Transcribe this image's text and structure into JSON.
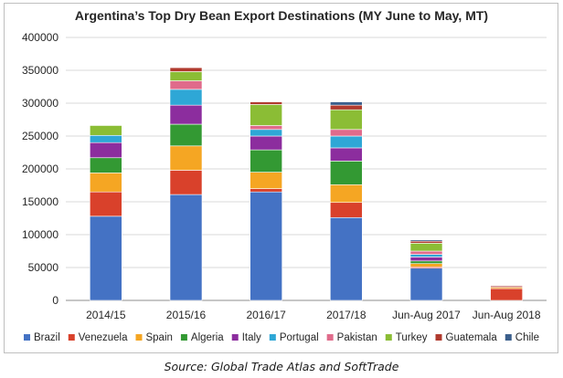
{
  "chart_data": {
    "type": "bar",
    "stacked": true,
    "title": "Argentina’s Top Dry Bean Export Destinations (MY June to May, MT)",
    "xlabel": "",
    "ylabel": "",
    "ylim": [
      0,
      400000
    ],
    "yticks": [
      0,
      50000,
      100000,
      150000,
      200000,
      250000,
      300000,
      350000,
      400000
    ],
    "ytick_labels": [
      "0",
      "50000",
      "100000",
      "150000",
      "200000",
      "250000",
      "300000",
      "350000",
      "400000"
    ],
    "grid": true,
    "legend_position": "bottom",
    "categories": [
      "2014/15",
      "2015/16",
      "2016/17",
      "2017/18",
      "Jun-Aug 2017",
      "Jun-Aug 2018"
    ],
    "series": [
      {
        "name": "Brazil",
        "color": "#4472c4",
        "values": [
          128000,
          161000,
          165000,
          126000,
          49000,
          0
        ]
      },
      {
        "name": "Venezuela",
        "color": "#d9412b",
        "values": [
          37000,
          37000,
          5000,
          23000,
          2000,
          18000
        ]
      },
      {
        "name": "Spain",
        "color": "#f5a623",
        "values": [
          29000,
          37000,
          25000,
          27000,
          5000,
          2000
        ]
      },
      {
        "name": "Algeria",
        "color": "#339933",
        "values": [
          23000,
          33000,
          34000,
          36000,
          4000,
          0
        ]
      },
      {
        "name": "Italy",
        "color": "#8c2d9e",
        "values": [
          23000,
          29000,
          21000,
          20000,
          6000,
          0
        ]
      },
      {
        "name": "Portugal",
        "color": "#2ea7d6",
        "values": [
          11000,
          24000,
          10000,
          18000,
          4000,
          0
        ]
      },
      {
        "name": "Pakistan",
        "color": "#e06b8b",
        "values": [
          0,
          13000,
          6000,
          10000,
          5000,
          0
        ]
      },
      {
        "name": "Turkey",
        "color": "#8bbd35",
        "values": [
          15000,
          14000,
          32000,
          30000,
          12000,
          0
        ]
      },
      {
        "name": "Guatemala",
        "color": "#b03a2e",
        "values": [
          0,
          6000,
          4000,
          7000,
          3000,
          2000
        ]
      },
      {
        "name": "Chile",
        "color": "#3b5f8c",
        "values": [
          0,
          0,
          0,
          5000,
          2000,
          0
        ]
      }
    ]
  },
  "source_text": "Source: Global Trade Atlas and SoftTrade"
}
